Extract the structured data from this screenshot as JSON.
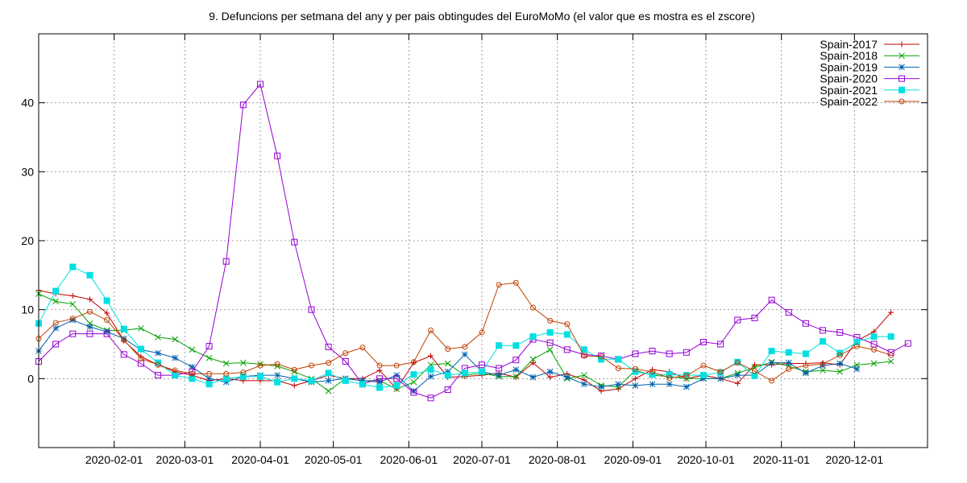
{
  "chart_data": {
    "type": "line",
    "title": "9. Defuncions per setmana del any y per pais obtingudes del EuroMoMo (el valor que es mostra es el zscore)",
    "xlabel": "",
    "ylabel": "",
    "ylim": [
      -10,
      50
    ],
    "xlim": [
      "2020-01-01",
      "2020-12-31"
    ],
    "yticks": [
      0,
      10,
      20,
      30,
      40
    ],
    "xticks": [
      "2020-02-01",
      "2020-03-01",
      "2020-04-01",
      "2020-05-01",
      "2020-06-01",
      "2020-07-01",
      "2020-08-01",
      "2020-09-01",
      "2020-10-01",
      "2020-11-01",
      "2020-12-01"
    ],
    "x": [
      "2020-01-01",
      "2020-01-08",
      "2020-01-15",
      "2020-01-22",
      "2020-01-29",
      "2020-02-05",
      "2020-02-12",
      "2020-02-19",
      "2020-02-26",
      "2020-03-04",
      "2020-03-11",
      "2020-03-18",
      "2020-03-25",
      "2020-04-01",
      "2020-04-08",
      "2020-04-15",
      "2020-04-22",
      "2020-04-29",
      "2020-05-06",
      "2020-05-13",
      "2020-05-20",
      "2020-05-27",
      "2020-06-03",
      "2020-06-10",
      "2020-06-17",
      "2020-06-24",
      "2020-07-01",
      "2020-07-08",
      "2020-07-15",
      "2020-07-22",
      "2020-07-29",
      "2020-08-05",
      "2020-08-12",
      "2020-08-19",
      "2020-08-26",
      "2020-09-02",
      "2020-09-09",
      "2020-09-16",
      "2020-09-23",
      "2020-09-30",
      "2020-10-07",
      "2020-10-14",
      "2020-10-21",
      "2020-10-28",
      "2020-11-04",
      "2020-11-11",
      "2020-11-18",
      "2020-11-25",
      "2020-12-02",
      "2020-12-09",
      "2020-12-16",
      "2020-12-23",
      "2020-12-30"
    ],
    "grid": true,
    "legend_position": "top-right",
    "series": [
      {
        "name": "Spain-2017",
        "color": "#c00000",
        "marker": "plus",
        "values": [
          12.8,
          12.3,
          12.0,
          11.5,
          9.5,
          5.5,
          3.2,
          2.0,
          1.0,
          0.5,
          -0.3,
          0.0,
          -0.3,
          -0.3,
          -0.3,
          -1.0,
          -0.3,
          0.5,
          0.0,
          0.0,
          1.2,
          -1.5,
          2.3,
          3.3,
          0.2,
          0.3,
          0.5,
          0.8,
          0.2,
          2.3,
          0.2,
          0.7,
          -0.2,
          -1.8,
          -1.5,
          0.0,
          1.3,
          1.0,
          0.0,
          0.5,
          0.0,
          -0.7,
          2.0,
          2.0,
          2.2,
          2.2,
          2.3,
          2.0,
          5.5,
          6.8,
          9.6,
          null,
          null
        ]
      },
      {
        "name": "Spain-2018",
        "color": "#00a000",
        "marker": "x",
        "values": [
          12.3,
          11.2,
          10.8,
          8.0,
          7.0,
          7.0,
          7.3,
          6.0,
          5.7,
          4.2,
          3.0,
          2.2,
          2.3,
          2.1,
          1.8,
          1.0,
          0.0,
          -1.8,
          0.0,
          -0.3,
          -0.3,
          -1.5,
          -0.5,
          2.0,
          2.2,
          0.5,
          0.8,
          0.3,
          0.3,
          2.8,
          4.2,
          0.0,
          0.5,
          -1.0,
          -1.2,
          1.2,
          0.5,
          0.3,
          0.0,
          0.0,
          0.0,
          0.8,
          1.6,
          2.4,
          1.8,
          1.0,
          1.2,
          1.0,
          2.0,
          2.2,
          2.5,
          null,
          null
        ]
      },
      {
        "name": "Spain-2019",
        "color": "#0060ad",
        "marker": "star",
        "values": [
          4.0,
          7.3,
          8.5,
          7.5,
          6.8,
          5.8,
          4.2,
          3.7,
          3.0,
          1.7,
          0.0,
          -0.5,
          0.3,
          0.5,
          0.5,
          0.0,
          -0.5,
          -0.3,
          0.0,
          -0.3,
          -0.5,
          0.5,
          -1.8,
          0.3,
          1.0,
          3.5,
          1.0,
          0.5,
          1.3,
          0.2,
          1.0,
          0.2,
          -0.8,
          -1.2,
          -0.8,
          -1.0,
          -0.8,
          -0.8,
          -1.2,
          0.0,
          0.0,
          0.5,
          0.5,
          2.3,
          2.3,
          0.8,
          1.9,
          2.2,
          1.4,
          null,
          null,
          null,
          null
        ]
      },
      {
        "name": "Spain-2020",
        "color": "#9400d3",
        "marker": "box",
        "values": [
          2.5,
          5.0,
          6.5,
          6.5,
          6.5,
          3.5,
          2.2,
          0.5,
          0.5,
          1.0,
          4.7,
          17.0,
          39.7,
          42.7,
          32.3,
          19.8,
          10.0,
          4.6,
          2.5,
          -0.8,
          0.0,
          0.0,
          -2.0,
          -2.8,
          -1.6,
          1.5,
          2.0,
          1.5,
          2.7,
          5.7,
          5.2,
          4.2,
          3.5,
          3.3,
          2.8,
          3.6,
          4.0,
          3.6,
          3.8,
          5.3,
          5.0,
          8.5,
          8.8,
          11.4,
          9.6,
          8.0,
          7.0,
          6.7,
          6.0,
          5.0,
          3.8,
          5.1,
          null
        ]
      },
      {
        "name": "Spain-2021",
        "color": "#00e0e0",
        "marker": "filled-box",
        "values": [
          8.0,
          12.7,
          16.2,
          15.0,
          11.3,
          7.2,
          4.3,
          2.3,
          0.5,
          0.0,
          -0.8,
          0.0,
          0.3,
          0.3,
          -0.5,
          0.0,
          -0.3,
          0.8,
          -0.3,
          -0.8,
          -1.3,
          -1.0,
          0.6,
          1.3,
          0.5,
          0.8,
          1.0,
          4.8,
          4.8,
          6.1,
          6.7,
          6.4,
          4.2,
          2.8,
          2.8,
          1.0,
          0.6,
          0.6,
          0.5,
          0.5,
          0.9,
          2.4,
          0.4,
          4.0,
          3.8,
          3.6,
          5.4,
          3.7,
          5.3,
          6.1,
          6.1,
          null,
          null
        ]
      },
      {
        "name": "Spain-2022",
        "color": "#c04000",
        "marker": "circle",
        "values": [
          5.8,
          8.1,
          8.7,
          9.7,
          8.5,
          5.6,
          2.9,
          2.0,
          1.2,
          0.7,
          0.7,
          0.7,
          0.9,
          1.9,
          2.1,
          1.3,
          1.9,
          2.3,
          3.7,
          4.5,
          1.9,
          1.9,
          2.4,
          7.0,
          4.3,
          4.6,
          6.7,
          13.6,
          13.9,
          10.3,
          8.4,
          7.9,
          3.3,
          3.2,
          1.5,
          1.4,
          1.0,
          0.1,
          0.4,
          1.9,
          1.0,
          2.3,
          1.1,
          -0.3,
          1.4,
          1.9,
          2.1,
          3.4,
          4.7,
          4.2,
          3.4,
          null,
          null
        ]
      }
    ]
  }
}
